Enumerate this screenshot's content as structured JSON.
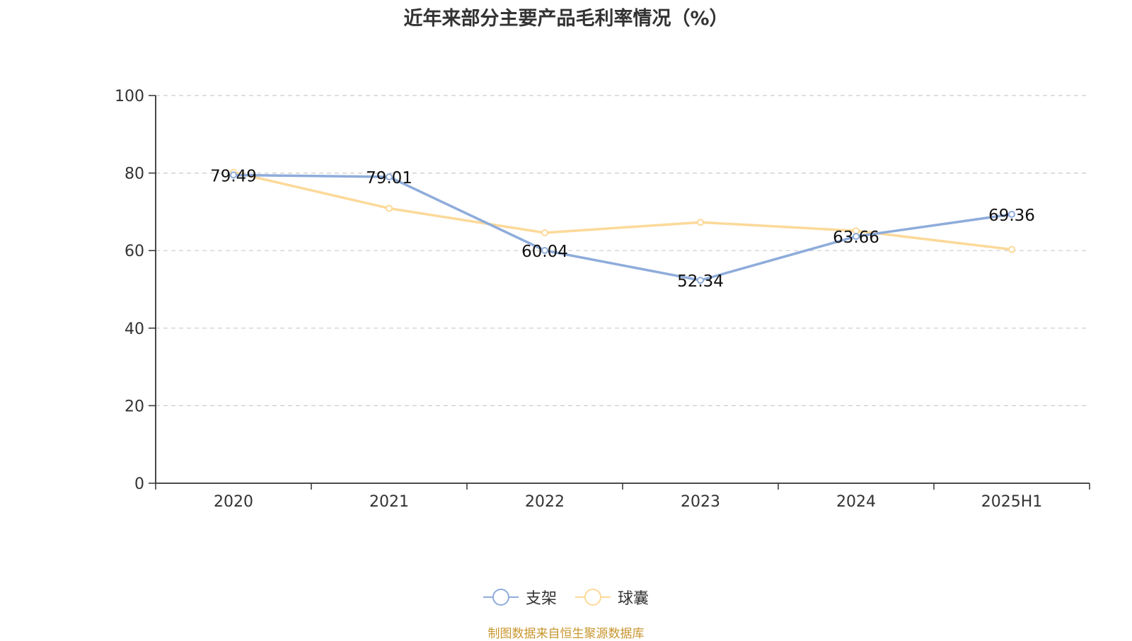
{
  "chart_data": {
    "type": "line",
    "title": "近年来部分主要产品毛利率情况（%）",
    "categories": [
      "2020",
      "2021",
      "2022",
      "2023",
      "2024",
      "2025H1"
    ],
    "series": [
      {
        "name": "支架",
        "color": "#8eacdb",
        "values": [
          79.49,
          79.01,
          60.04,
          52.34,
          63.66,
          69.36
        ],
        "labels": [
          "79.49",
          "79.01",
          "60.04",
          "52.34",
          "63.66",
          "69.36"
        ]
      },
      {
        "name": "球囊",
        "color": "#fcd999",
        "values": [
          80.2,
          70.9,
          64.6,
          67.3,
          65.1,
          60.3
        ]
      }
    ],
    "ylim": [
      0,
      100
    ],
    "yticks": [
      "0",
      "20",
      "40",
      "60",
      "80",
      "100"
    ],
    "grid": true,
    "legend": "bottom-center",
    "source": "制图数据来自恒生聚源数据库"
  }
}
